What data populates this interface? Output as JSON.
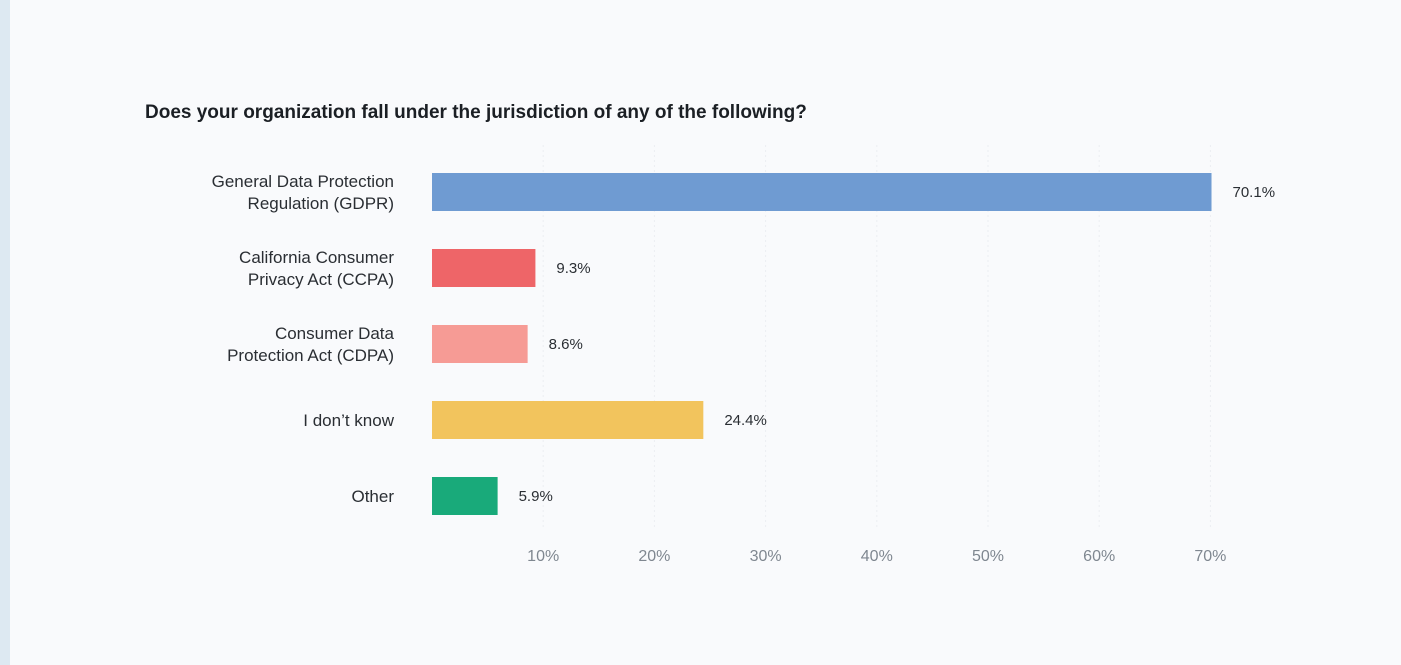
{
  "chart_data": {
    "type": "bar",
    "orientation": "horizontal",
    "title": "Does your organization fall under the jurisdiction of any of the following?",
    "categories": [
      [
        "General Data Protection",
        "Regulation (GDPR)"
      ],
      [
        "California Consumer",
        "Privacy Act (CCPA)"
      ],
      [
        "Consumer Data",
        "Protection Act (CDPA)"
      ],
      [
        "I don’t know"
      ],
      [
        "Other"
      ]
    ],
    "values": [
      70.1,
      9.3,
      8.6,
      24.4,
      5.9
    ],
    "value_labels": [
      "70.1%",
      "9.3%",
      "8.6%",
      "24.4%",
      "5.9%"
    ],
    "colors": [
      "#6f9bd2",
      "#ee6568",
      "#f69b95",
      "#f2c45d",
      "#19aa7a"
    ],
    "xlim": [
      0,
      70
    ],
    "xticks": [
      10,
      20,
      30,
      40,
      50,
      60,
      70
    ],
    "xtick_labels": [
      "10%",
      "20%",
      "30%",
      "40%",
      "50%",
      "60%",
      "70%"
    ],
    "xlabel": "",
    "ylabel": "",
    "grid": true,
    "legend": "none"
  }
}
